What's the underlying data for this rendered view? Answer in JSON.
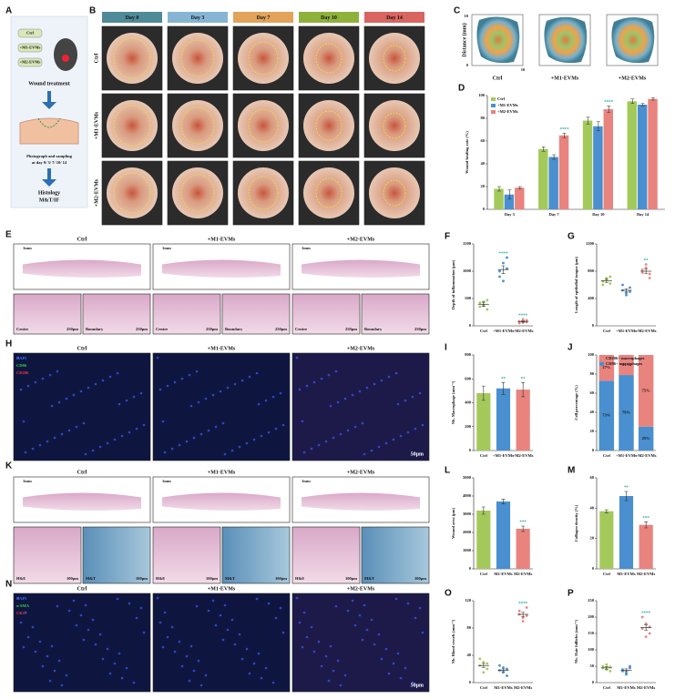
{
  "panel_a": {
    "letter": "A",
    "groups": [
      "Ctrl",
      "+M1-EVMs",
      "+M2-EVMs"
    ],
    "steps": [
      "Wound treatment",
      "Photograph and sampling",
      "at day 0/ 3/ 7/ 10/ 14",
      "Histology",
      "M&T/IF"
    ]
  },
  "panel_b": {
    "letter": "B",
    "days": [
      "Day 0",
      "Day 3",
      "Day 7",
      "Day 10",
      "Day 14"
    ],
    "day_colors": [
      "#4f8a99",
      "#86b5d4",
      "#e2a35b",
      "#8fb13c",
      "#d8655f"
    ],
    "groups": [
      "Ctrl",
      "+M1-EVMs",
      "+M2-EVMs"
    ]
  },
  "panel_c": {
    "letter": "C",
    "groups": [
      "Ctrl",
      "+M1-EVMs",
      "+M2-EVMs"
    ],
    "axis_label": "Distance (mm)",
    "ticks": [
      0,
      10
    ]
  },
  "panel_e": {
    "letter": "E",
    "groups": [
      "Ctrl",
      "+M1-EVMs",
      "+M2-EVMs"
    ],
    "scale_large": "1mm",
    "regions": [
      "Centre",
      "Boundary"
    ],
    "scale_small": "250μm"
  },
  "panel_h": {
    "letter": "H",
    "groups": [
      "Ctrl",
      "+M1-EVMs",
      "+M2-EVMs"
    ],
    "stains": [
      "DAPI",
      "CD86",
      "CD206"
    ],
    "stain_colors": [
      "#4a6cff",
      "#3ccf4a",
      "#ff3c3c"
    ],
    "scale": "50μm"
  },
  "panel_k": {
    "letter": "K",
    "groups": [
      "Ctrl",
      "+M1-EVMs",
      "+M2-EVMs"
    ],
    "scale_large": "1mm",
    "stains": [
      "H&E",
      "M&T"
    ],
    "scale_small": "100μm"
  },
  "panel_n": {
    "letter": "N",
    "groups": [
      "Ctrl",
      "+M1-EVMs",
      "+M2-EVMs"
    ],
    "stains": [
      "DAPI",
      "α-SMA",
      "CK17"
    ],
    "stain_colors": [
      "#4a6cff",
      "#3ccf4a",
      "#ff3c3c"
    ],
    "scale": "50μm"
  },
  "charts": [
    {
      "type": "bar",
      "letter": "D",
      "ylabel": "Wound healing rate (%)",
      "categories": [
        "Day 3",
        "Day 7",
        "Day 10",
        "Day 14"
      ],
      "series": [
        {
          "name": "Ctrl",
          "color": "#a4c95b",
          "values": [
            18,
            53,
            78,
            95
          ],
          "errors": [
            2,
            2,
            3,
            2
          ]
        },
        {
          "name": "+M1-EVMs",
          "color": "#4a8fcf",
          "values": [
            13,
            46,
            73,
            92
          ],
          "errors": [
            4,
            2,
            4,
            1
          ]
        },
        {
          "name": "+M2-EVMs",
          "color": "#e9837e",
          "values": [
            19,
            65,
            88,
            97
          ],
          "errors": [
            1,
            2,
            3,
            1
          ]
        }
      ],
      "stars": [
        null,
        "****",
        "****",
        null
      ],
      "ylim": [
        0,
        100
      ],
      "yticks": [
        0,
        20,
        40,
        60,
        80,
        100
      ]
    },
    {
      "type": "dot",
      "letter": "F",
      "ylabel": "Depth of inflammation (μm)",
      "categories": [
        "Ctrl",
        "+M1-EVMs",
        "+M2-EVMs"
      ],
      "colors": [
        "#a4c95b",
        "#4a8fcf",
        "#e9837e"
      ],
      "points": [
        [
          420,
          380,
          470,
          350,
          440,
          300
        ],
        [
          1000,
          1150,
          1250,
          900,
          820,
          1050
        ],
        [
          80,
          60,
          100,
          50,
          120,
          70
        ]
      ],
      "means": [
        395,
        1030,
        80
      ],
      "errors": [
        40,
        70,
        12
      ],
      "stars": [
        null,
        "****",
        "****"
      ],
      "ylim": [
        0,
        1500
      ],
      "yticks": [
        0,
        500,
        1000,
        1500
      ]
    },
    {
      "type": "dot",
      "letter": "G",
      "ylabel": "Length of epithelial tongue (μm)",
      "categories": [
        "Ctrl",
        "+M1-EVMs",
        "+M2-EVMs"
      ],
      "colors": [
        "#a4c95b",
        "#4a8fcf",
        "#e9837e"
      ],
      "points": [
        [
          650,
          700,
          620,
          600,
          680,
          720
        ],
        [
          520,
          480,
          560,
          600,
          450,
          500
        ],
        [
          820,
          900,
          760,
          780,
          850,
          700
        ]
      ],
      "means": [
        660,
        520,
        800
      ],
      "errors": [
        25,
        25,
        35
      ],
      "stars": [
        null,
        null,
        "**"
      ],
      "ylim": [
        0,
        1200
      ],
      "yticks": [
        0,
        400,
        800,
        1200
      ]
    },
    {
      "type": "bar",
      "letter": "I",
      "ylabel": "Nb. Macrophage (mm⁻²)",
      "categories": [
        "Ctrl",
        "+M1-EVMs",
        "+M2-EVMs"
      ],
      "colors": [
        "#a4c95b",
        "#4a8fcf",
        "#e9837e"
      ],
      "values": [
        480,
        520,
        510
      ],
      "errors": [
        60,
        50,
        60
      ],
      "stars": [
        null,
        "**",
        "**"
      ],
      "ylim": [
        0,
        800
      ],
      "yticks": [
        0,
        200,
        400,
        600,
        800
      ]
    },
    {
      "type": "stacked",
      "letter": "J",
      "ylabel": "Cell percentage (%)",
      "categories": [
        "Ctrl",
        "+M1-EVMs",
        "+M2-EVMs"
      ],
      "series": [
        {
          "name": "CD206+ macrophages",
          "color": "#e9837e",
          "values": [
            27,
            21,
            75
          ],
          "value_labels": [
            "27%",
            "21%",
            "75%"
          ]
        },
        {
          "name": "CD86+ macrophages",
          "color": "#4a8fcf",
          "values": [
            73,
            79,
            25
          ],
          "value_labels": [
            "73%",
            "79%",
            "25%"
          ]
        }
      ],
      "ylim": [
        0,
        100
      ],
      "yticks": [
        0,
        20,
        40,
        60,
        80,
        100
      ]
    },
    {
      "type": "bar",
      "letter": "L",
      "ylabel": "Wound area (μm)",
      "categories": [
        "Ctrl",
        "M1-EVMs",
        "M2-EVMs"
      ],
      "colors": [
        "#a4c95b",
        "#4a8fcf",
        "#e9837e"
      ],
      "values": [
        3200,
        3700,
        2200
      ],
      "errors": [
        200,
        120,
        150
      ],
      "stars": [
        null,
        null,
        "***"
      ],
      "ylim": [
        0,
        5000
      ],
      "yticks": [
        0,
        1000,
        2000,
        3000,
        4000,
        5000
      ]
    },
    {
      "type": "bar",
      "letter": "M",
      "ylabel": "Collagen density (%)",
      "categories": [
        "Ctrl",
        "M1-EVMs",
        "M2-EVMs"
      ],
      "colors": [
        "#a4c95b",
        "#4a8fcf",
        "#e9837e"
      ],
      "values": [
        38,
        48,
        29
      ],
      "errors": [
        1,
        3,
        2
      ],
      "stars": [
        null,
        "**",
        "***"
      ],
      "ylim": [
        0,
        60
      ],
      "yticks": [
        0,
        20,
        40,
        60
      ]
    },
    {
      "type": "dot",
      "letter": "O",
      "ylabel": "Nb. Blood vessels (mm⁻²)",
      "categories": [
        "Ctrl",
        "M1-EVMs",
        "M2-EVMs"
      ],
      "colors": [
        "#a4c95b",
        "#4a8fcf",
        "#e9837e"
      ],
      "points": [
        [
          25,
          30,
          20,
          35,
          15,
          28
        ],
        [
          18,
          22,
          10,
          25,
          15,
          20
        ],
        [
          100,
          95,
          110,
          105,
          90,
          98
        ]
      ],
      "means": [
        25,
        18,
        100
      ],
      "errors": [
        3,
        2,
        3
      ],
      "stars": [
        null,
        null,
        "****"
      ],
      "ylim": [
        0,
        120
      ],
      "yticks": [
        0,
        40,
        80,
        120
      ]
    },
    {
      "type": "dot",
      "letter": "P",
      "ylabel": "Nb. Hair follicles (mm⁻²)",
      "categories": [
        "Ctrl",
        "M1-EVMs",
        "M2-EVMs"
      ],
      "colors": [
        "#a4c95b",
        "#4a8fcf",
        "#e9837e"
      ],
      "points": [
        [
          45,
          55,
          35,
          50,
          40,
          48
        ],
        [
          40,
          30,
          50,
          35,
          25,
          45
        ],
        [
          165,
          180,
          150,
          200,
          140,
          170
        ]
      ],
      "means": [
        45,
        38,
        168
      ],
      "errors": [
        4,
        4,
        9
      ],
      "stars": [
        null,
        null,
        "****"
      ],
      "ylim": [
        0,
        250
      ],
      "yticks": [
        0,
        50,
        100,
        150,
        200,
        250
      ]
    }
  ]
}
